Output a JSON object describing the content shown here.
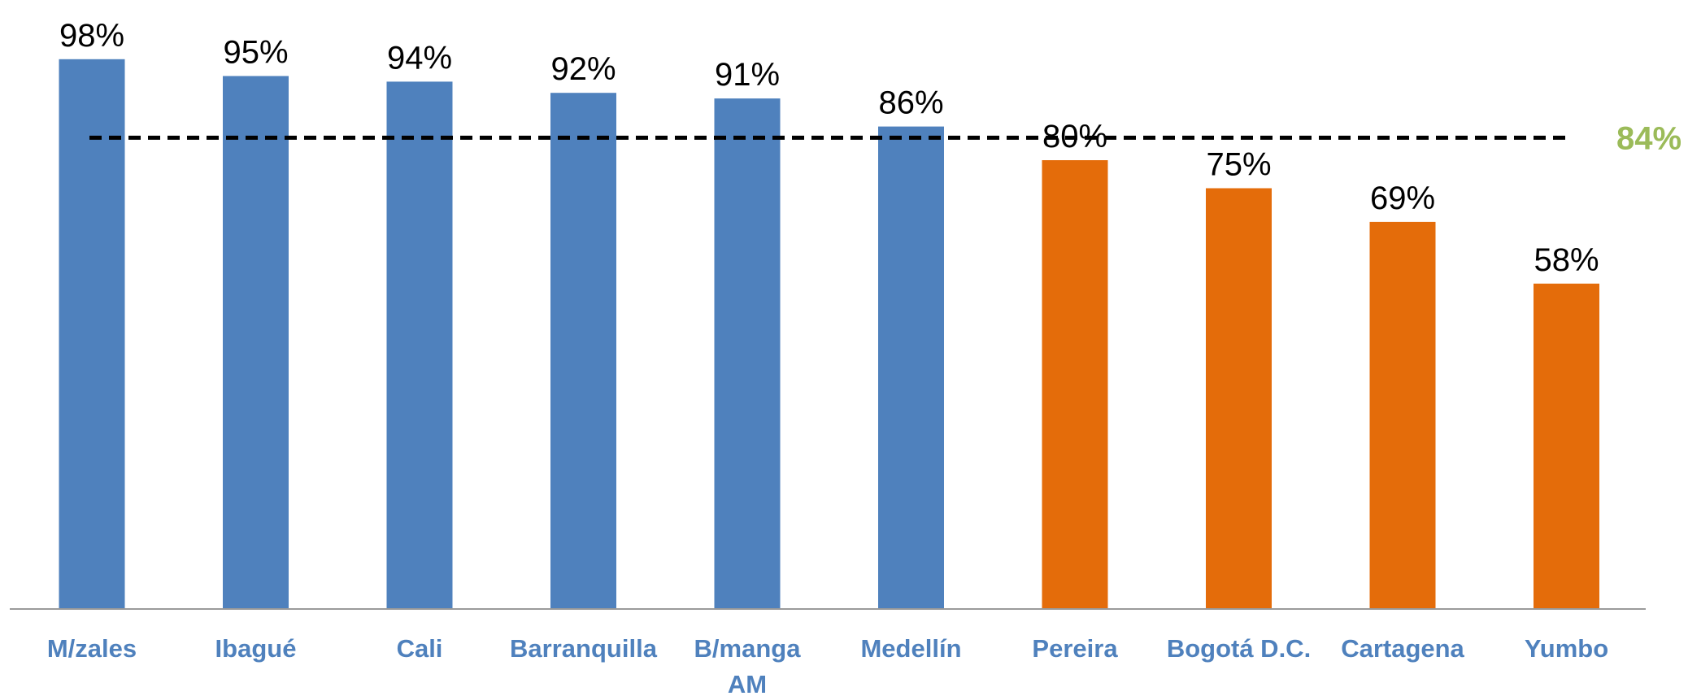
{
  "chart_data": {
    "type": "bar",
    "categories": [
      "M/zales",
      "Ibagué",
      "Cali",
      "Barranquilla",
      "B/manga AM",
      "Medellín",
      "Pereira",
      "Bogotá D.C.",
      "Cartagena",
      "Yumbo"
    ],
    "category_lines": [
      [
        "M/zales"
      ],
      [
        "Ibagué"
      ],
      [
        "Cali"
      ],
      [
        "Barranquilla"
      ],
      [
        "B/manga",
        "AM"
      ],
      [
        "Medellín"
      ],
      [
        "Pereira"
      ],
      [
        "Bogotá D.C."
      ],
      [
        "Cartagena"
      ],
      [
        "Yumbo"
      ]
    ],
    "values": [
      98,
      95,
      94,
      92,
      91,
      86,
      80,
      75,
      69,
      58
    ],
    "value_labels": [
      "98%",
      "95%",
      "94%",
      "92%",
      "91%",
      "86%",
      "80%",
      "75%",
      "69%",
      "58%"
    ],
    "reference_line": {
      "value": 84,
      "label": "84%",
      "style": "dashed",
      "color": "#000000",
      "label_color": "#9BBB59"
    },
    "bar_colors": [
      "#4F81BD",
      "#4F81BD",
      "#4F81BD",
      "#4F81BD",
      "#4F81BD",
      "#4F81BD",
      "#E46C0A",
      "#E46C0A",
      "#E46C0A",
      "#E46C0A"
    ],
    "category_label_color": "#4F81BD",
    "ylim": [
      0,
      100
    ],
    "grid": false,
    "legend": "none",
    "title": "",
    "xlabel": "",
    "ylabel": ""
  }
}
